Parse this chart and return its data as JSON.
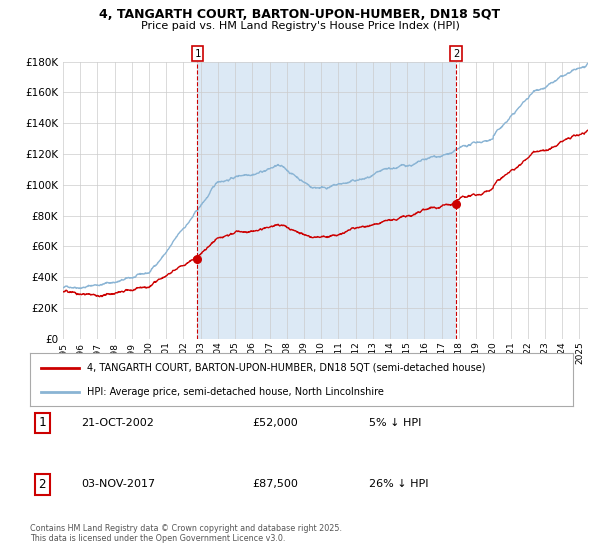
{
  "title_line1": "4, TANGARTH COURT, BARTON-UPON-HUMBER, DN18 5QT",
  "title_line2": "Price paid vs. HM Land Registry's House Price Index (HPI)",
  "ylim": [
    0,
    180000
  ],
  "ytick_values": [
    0,
    20000,
    40000,
    60000,
    80000,
    100000,
    120000,
    140000,
    160000,
    180000
  ],
  "xlim_start": 1995.0,
  "xlim_end": 2025.5,
  "transaction1_date": 2002.81,
  "transaction1_price": 52000,
  "transaction1_label": "1",
  "transaction2_date": 2017.84,
  "transaction2_price": 87500,
  "transaction2_label": "2",
  "legend_line1": "4, TANGARTH COURT, BARTON-UPON-HUMBER, DN18 5QT (semi-detached house)",
  "legend_line2": "HPI: Average price, semi-detached house, North Lincolnshire",
  "table_row1": [
    "1",
    "21-OCT-2002",
    "£52,000",
    "5% ↓ HPI"
  ],
  "table_row2": [
    "2",
    "03-NOV-2017",
    "£87,500",
    "26% ↓ HPI"
  ],
  "footnote": "Contains HM Land Registry data © Crown copyright and database right 2025.\nThis data is licensed under the Open Government Licence v3.0.",
  "hpi_color": "#8ab4d4",
  "price_color": "#cc0000",
  "bg_color": "#dce9f5",
  "plot_bg": "#ffffff",
  "grid_color": "#cccccc",
  "vline_color": "#cc0000",
  "marker_color": "#cc0000"
}
